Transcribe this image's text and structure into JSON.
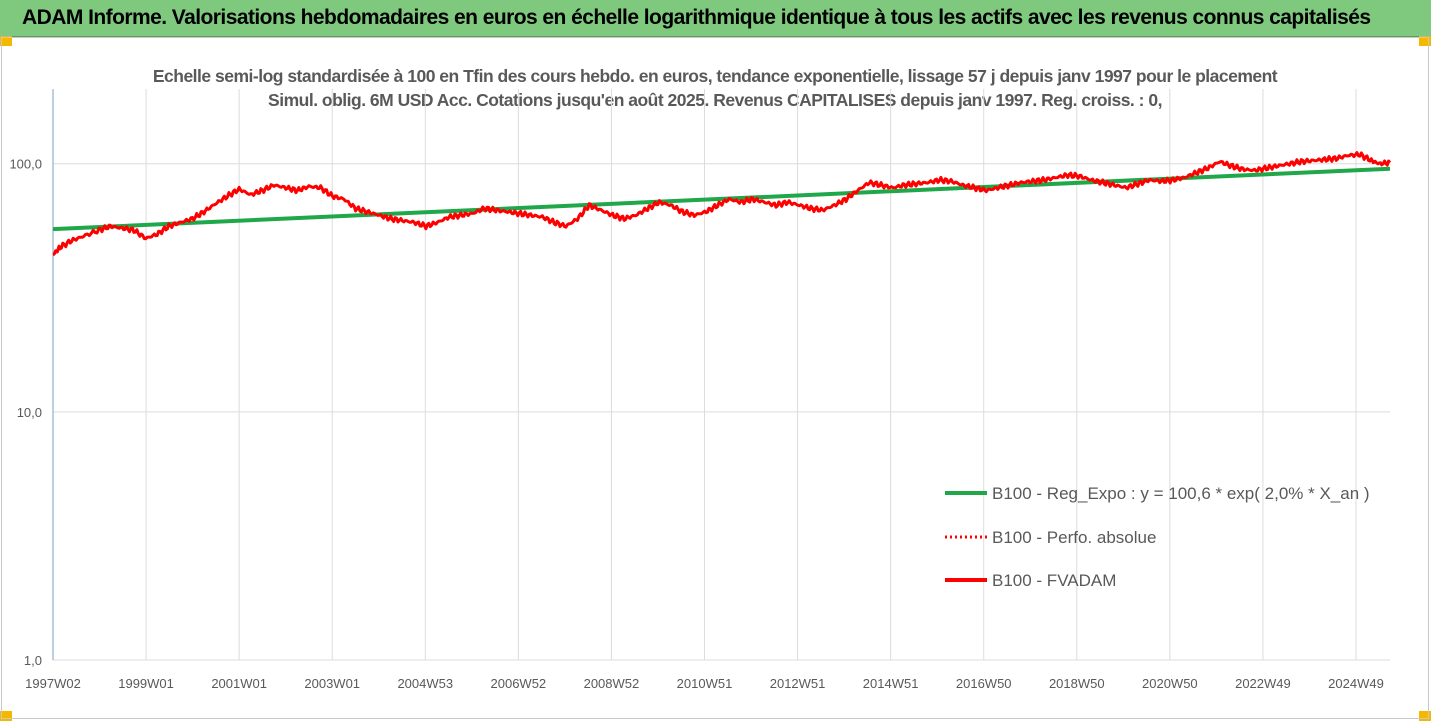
{
  "banner": {
    "title": "ADAM Informe. Valorisations hebdomadaires en euros en échelle logarithmique identique à tous les actifs avec les revenus connus capitalisés",
    "color": "#7fc97f"
  },
  "chart_data": {
    "type": "line",
    "title": "Echelle semi-log standardisée à 100 en Tfin des cours hebdo. en euros, tendance exponentielle, lissage 57 j depuis janv 1997 pour le placement Simul. oblig. 6M USD Acc. Cotations jusqu'en août 2025. Revenus CAPITALISES depuis janv 1997. Reg. croiss. : 0,",
    "xlabel": "",
    "ylabel": "",
    "y_scale": "log",
    "ylim": [
      1,
      200
    ],
    "y_ticks": [
      "1,0",
      "10,0",
      "100,0"
    ],
    "x_range": [
      "1997-01-06",
      "2025-08-25"
    ],
    "x_ticks": [
      {
        "label": "1997W02",
        "date": "1997-01-06"
      },
      {
        "label": "1999W01",
        "date": "1999-01-04"
      },
      {
        "label": "2001W01",
        "date": "2001-01-01"
      },
      {
        "label": "2003W01",
        "date": "2002-12-30"
      },
      {
        "label": "2004W53",
        "date": "2004-12-27"
      },
      {
        "label": "2006W52",
        "date": "2006-12-25"
      },
      {
        "label": "2008W52",
        "date": "2008-12-22"
      },
      {
        "label": "2010W51",
        "date": "2010-12-20"
      },
      {
        "label": "2012W51",
        "date": "2012-12-17"
      },
      {
        "label": "2014W51",
        "date": "2014-12-15"
      },
      {
        "label": "2016W50",
        "date": "2016-12-12"
      },
      {
        "label": "2018W50",
        "date": "2018-12-10"
      },
      {
        "label": "2020W50",
        "date": "2020-12-07"
      },
      {
        "label": "2022W49",
        "date": "2022-12-05"
      },
      {
        "label": "2024W49",
        "date": "2024-12-02"
      }
    ],
    "grid": true,
    "legend_position": "bottom-right",
    "series": [
      {
        "name": "B100 - Reg_Expo : y = 100,6 * exp( 2,0% *  X_an )",
        "color": "#1fa74a",
        "style": "solid",
        "x": [
          "1997-01-06",
          "2025-08-25"
        ],
        "values": [
          54.5,
          95.5
        ]
      },
      {
        "name": "B100 - Perfo. absolue",
        "color": "#ff0000",
        "style": "dotted",
        "x": [],
        "values": []
      },
      {
        "name": "B100 - FVADAM",
        "color": "#ff0000",
        "style": "solid",
        "x": [
          "1997-01-06",
          "1997-03-01",
          "1997-06-01",
          "1997-09-01",
          "1998-01-01",
          "1998-04-01",
          "1998-07-01",
          "1998-10-01",
          "1999-01-01",
          "1999-04-01",
          "1999-07-01",
          "1999-10-01",
          "2000-01-01",
          "2000-04-01",
          "2000-07-01",
          "2000-10-01",
          "2001-01-01",
          "2001-04-01",
          "2001-07-01",
          "2001-10-01",
          "2002-01-01",
          "2002-04-01",
          "2002-07-01",
          "2002-10-01",
          "2003-01-01",
          "2003-04-01",
          "2003-07-01",
          "2003-10-01",
          "2004-01-01",
          "2004-04-01",
          "2004-07-01",
          "2004-10-01",
          "2005-01-01",
          "2005-04-01",
          "2005-07-01",
          "2005-10-01",
          "2006-01-01",
          "2006-04-01",
          "2006-07-01",
          "2006-10-01",
          "2007-01-01",
          "2007-04-01",
          "2007-07-01",
          "2007-10-01",
          "2008-01-01",
          "2008-04-01",
          "2008-07-01",
          "2008-10-01",
          "2009-01-01",
          "2009-04-01",
          "2009-07-01",
          "2009-10-01",
          "2010-01-01",
          "2010-04-01",
          "2010-07-01",
          "2010-10-01",
          "2011-01-01",
          "2011-04-01",
          "2011-07-01",
          "2011-10-01",
          "2012-01-01",
          "2012-04-01",
          "2012-07-01",
          "2012-10-01",
          "2013-01-01",
          "2013-04-01",
          "2013-07-01",
          "2013-10-01",
          "2014-01-01",
          "2014-04-01",
          "2014-07-01",
          "2014-10-01",
          "2015-01-01",
          "2015-04-01",
          "2015-07-01",
          "2015-10-01",
          "2016-01-01",
          "2016-04-01",
          "2016-07-01",
          "2016-10-01",
          "2017-01-01",
          "2017-04-01",
          "2017-07-01",
          "2017-10-01",
          "2018-01-01",
          "2018-04-01",
          "2018-07-01",
          "2018-10-01",
          "2019-01-01",
          "2019-04-01",
          "2019-07-01",
          "2019-10-01",
          "2020-01-01",
          "2020-04-01",
          "2020-07-01",
          "2020-10-01",
          "2021-01-01",
          "2021-04-01",
          "2021-07-01",
          "2021-10-01",
          "2022-01-01",
          "2022-04-01",
          "2022-07-01",
          "2022-10-01",
          "2023-01-01",
          "2023-04-01",
          "2023-07-01",
          "2023-10-01",
          "2024-01-01",
          "2024-04-01",
          "2024-07-01",
          "2024-10-01",
          "2025-01-01",
          "2025-04-01",
          "2025-06-01",
          "2025-08-25"
        ],
        "values": [
          43,
          46,
          49,
          51,
          54,
          56,
          55,
          54,
          50,
          52,
          56,
          58,
          60,
          64,
          69,
          74,
          79,
          75,
          78,
          82,
          80,
          78,
          81,
          80,
          74,
          72,
          66,
          64,
          62,
          60,
          59,
          58,
          56,
          58,
          61,
          62,
          63,
          66,
          65,
          64,
          63,
          62,
          61,
          58,
          56,
          60,
          68,
          65,
          62,
          60,
          62,
          66,
          70,
          68,
          64,
          62,
          64,
          68,
          72,
          70,
          72,
          70,
          68,
          70,
          68,
          66,
          65,
          68,
          72,
          78,
          84,
          82,
          80,
          82,
          83,
          84,
          86,
          85,
          82,
          80,
          78,
          80,
          82,
          84,
          85,
          86,
          88,
          90,
          89,
          86,
          84,
          82,
          80,
          83,
          86,
          85,
          86,
          88,
          92,
          96,
          102,
          98,
          95,
          94,
          96,
          98,
          100,
          102,
          103,
          104,
          105,
          108,
          109,
          103,
          100,
          101
        ]
      }
    ]
  }
}
